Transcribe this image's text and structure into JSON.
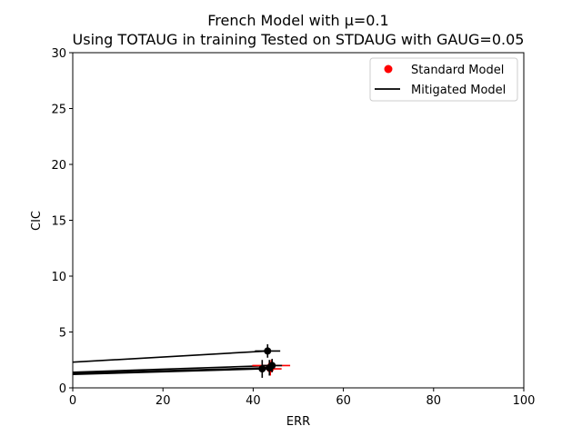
{
  "chart_data": {
    "type": "scatter",
    "title_line1": "French Model with μ=0.1",
    "title_line2": "Using TOTAUG in training Tested on STDAUG with GAUG=0.05",
    "xlabel": "ERR",
    "ylabel": "CIC",
    "xlim": [
      0,
      100
    ],
    "ylim": [
      0,
      30
    ],
    "xticks": [
      0,
      20,
      40,
      60,
      80,
      100
    ],
    "yticks": [
      0,
      5,
      10,
      15,
      20,
      25,
      30
    ],
    "grid": false,
    "legend_position": "top-right",
    "legend": [
      {
        "label": "Standard Model",
        "marker": "point",
        "color": "#ff0000"
      },
      {
        "label": "Mitigated Model",
        "marker": "line",
        "color": "#000000"
      }
    ],
    "series": [
      {
        "name": "Standard Model",
        "color": "#ff0000",
        "points": [
          {
            "x": 44.0,
            "y": 2.0,
            "xerr": 4.2,
            "yerr": 0.5
          },
          {
            "x": 43.8,
            "y": 1.7,
            "xerr": 2.5,
            "yerr": 0.6
          }
        ]
      },
      {
        "name": "Mitigated Model",
        "color": "#000000",
        "points": [
          {
            "x": 43.2,
            "y": 3.3,
            "xerr": 2.8,
            "yerr": 0.6
          },
          {
            "x": 44.2,
            "y": 2.0,
            "xerr": 2.2,
            "yerr": 0.6
          },
          {
            "x": 42.0,
            "y": 1.7,
            "xerr": 1.5,
            "yerr": 0.8
          },
          {
            "x": 43.6,
            "y": 1.8,
            "xerr": 1.2,
            "yerr": 0.7
          }
        ],
        "fit_lines": [
          {
            "x": [
              0,
              43.2
            ],
            "y": [
              2.3,
              3.3
            ]
          },
          {
            "x": [
              0,
              44.2
            ],
            "y": [
              1.4,
              2.0
            ]
          },
          {
            "x": [
              0,
              42.0
            ],
            "y": [
              1.2,
              1.7
            ]
          },
          {
            "x": [
              0,
              43.6
            ],
            "y": [
              1.3,
              1.8
            ]
          }
        ]
      }
    ]
  }
}
